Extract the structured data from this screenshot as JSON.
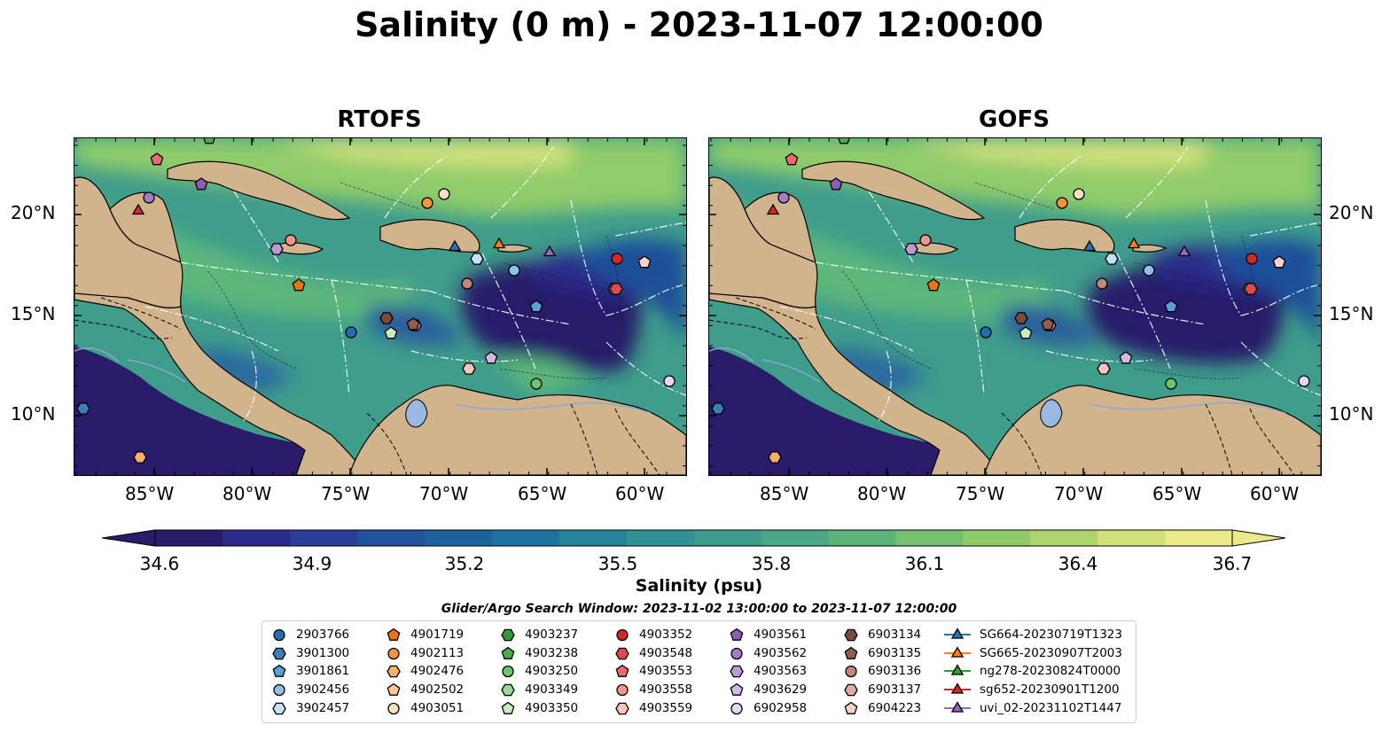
{
  "title": "Salinity (0 m) - 2023-11-07 12:00:00",
  "panels": [
    {
      "title": "RTOFS"
    },
    {
      "title": "GOFS"
    }
  ],
  "lon_ticks": [
    "85°W",
    "80°W",
    "75°W",
    "70°W",
    "65°W",
    "60°W"
  ],
  "lat_ticks": [
    "20°N",
    "15°N",
    "10°N"
  ],
  "colorbar": {
    "ticks": [
      "34.6",
      "34.9",
      "35.2",
      "35.5",
      "35.8",
      "36.1",
      "36.4",
      "36.7"
    ],
    "label": "Salinity (psu)",
    "colors": [
      "#2a1b6b",
      "#2b2b8c",
      "#2a3d98",
      "#21519c",
      "#1c639e",
      "#1c749e",
      "#24849b",
      "#319195",
      "#3e9c8c",
      "#4ba884",
      "#5ab479",
      "#72c070",
      "#8ecb68",
      "#aed56d",
      "#d2df7a",
      "#ece98a"
    ]
  },
  "search_window": "Glider/Argo Search Window: 2023-11-02 13:00:00 to 2023-11-07 12:00:00",
  "legend": {
    "columns": [
      [
        {
          "label": "2903766",
          "marker": "circle",
          "color": "#1f6fb4"
        },
        {
          "label": "3901300",
          "marker": "hexagon",
          "color": "#3a7fb5"
        },
        {
          "label": "3901861",
          "marker": "pentagon",
          "color": "#5a9fd4"
        },
        {
          "label": "3902456",
          "marker": "circle",
          "color": "#8fc0e6"
        },
        {
          "label": "3902457",
          "marker": "hexagon",
          "color": "#c6e0f5"
        }
      ],
      [
        {
          "label": "4901719",
          "marker": "pentagon",
          "color": "#e8750e"
        },
        {
          "label": "4902113",
          "marker": "circle",
          "color": "#f5923a"
        },
        {
          "label": "4902476",
          "marker": "hexagon",
          "color": "#f7ae68"
        },
        {
          "label": "4902502",
          "marker": "pentagon",
          "color": "#f9c896"
        },
        {
          "label": "4903051",
          "marker": "circle",
          "color": "#fde0c4"
        }
      ],
      [
        {
          "label": "4903237",
          "marker": "hexagon",
          "color": "#2e9a33"
        },
        {
          "label": "4903238",
          "marker": "pentagon",
          "color": "#48ad48"
        },
        {
          "label": "4903250",
          "marker": "circle",
          "color": "#6cc56a"
        },
        {
          "label": "4903349",
          "marker": "hexagon",
          "color": "#9ad696"
        },
        {
          "label": "4903350",
          "marker": "pentagon",
          "color": "#c8ebc2"
        }
      ],
      [
        {
          "label": "4903352",
          "marker": "circle",
          "color": "#d62728"
        },
        {
          "label": "4903548",
          "marker": "hexagon",
          "color": "#e04a4a"
        },
        {
          "label": "4903553",
          "marker": "pentagon",
          "color": "#e86a6a"
        },
        {
          "label": "4903558",
          "marker": "circle",
          "color": "#f0948c"
        },
        {
          "label": "4903559",
          "marker": "hexagon",
          "color": "#f8c4bc"
        }
      ],
      [
        {
          "label": "4903561",
          "marker": "pentagon",
          "color": "#8f5bb5"
        },
        {
          "label": "4903562",
          "marker": "circle",
          "color": "#a57cc4"
        },
        {
          "label": "4903563",
          "marker": "hexagon",
          "color": "#bd9ad6"
        },
        {
          "label": "4903629",
          "marker": "pentagon",
          "color": "#d2b8e6"
        },
        {
          "label": "6902958",
          "marker": "circle",
          "color": "#e6d6f5"
        }
      ],
      [
        {
          "label": "6903134",
          "marker": "hexagon",
          "color": "#7a4a3a"
        },
        {
          "label": "6903135",
          "marker": "pentagon",
          "color": "#955e4c"
        },
        {
          "label": "6903136",
          "marker": "circle",
          "color": "#c08878"
        },
        {
          "label": "6903137",
          "marker": "hexagon",
          "color": "#e0ada0"
        },
        {
          "label": "6904223",
          "marker": "pentagon",
          "color": "#f7d2c6"
        }
      ],
      [
        {
          "label": "SG664-20230719T1323",
          "marker": "triangle-line",
          "color": "#1f77b4"
        },
        {
          "label": "SG665-20230907T2003",
          "marker": "triangle-line",
          "color": "#ff7f0e"
        },
        {
          "label": "ng278-20230824T0000",
          "marker": "triangle-line",
          "color": "#2ca02c"
        },
        {
          "label": "sg652-20230901T1200",
          "marker": "triangle-line",
          "color": "#d62728"
        },
        {
          "label": "uvi_02-20231102T1447",
          "marker": "triangle-line",
          "color": "#9467bd"
        }
      ]
    ]
  },
  "map_colors": {
    "land": "#d2b48c",
    "lake": "#9ab8e0",
    "ocean_fresh": "#2a1b6b",
    "ocean_mid": "#3e9c8c",
    "ocean_salty": "#a8d46a"
  }
}
